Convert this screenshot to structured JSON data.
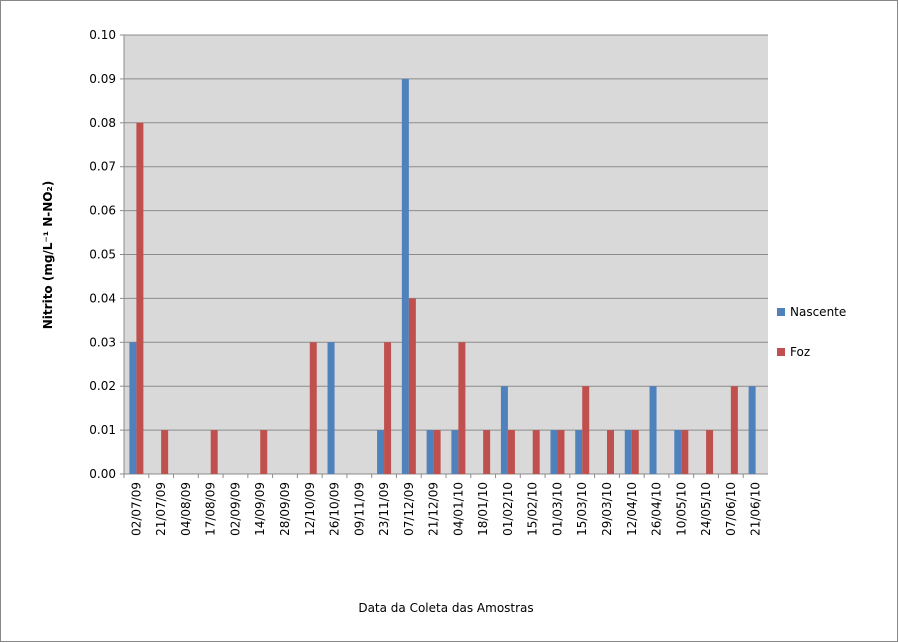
{
  "chart_data": {
    "type": "bar",
    "y_label": "Nitrito (mg/L⁻¹ N-NO₂)",
    "x_label": "Data da Coleta das Amostras",
    "categories": [
      "02/07/09",
      "21/07/09",
      "04/08/09",
      "17/08/09",
      "02/09/09",
      "14/09/09",
      "28/09/09",
      "12/10/09",
      "26/10/09",
      "09/11/09",
      "23/11/09",
      "07/12/09",
      "21/12/09",
      "04/01/10",
      "18/01/10",
      "01/02/10",
      "15/02/10",
      "01/03/10",
      "15/03/10",
      "29/03/10",
      "12/04/10",
      "26/04/10",
      "10/05/10",
      "24/05/10",
      "07/06/10",
      "21/06/10"
    ],
    "series": [
      {
        "name": "Nascente",
        "color": "#4f81bd",
        "values": [
          0.03,
          0,
          0,
          0,
          0,
          0,
          0,
          0,
          0.03,
          0,
          0.01,
          0.09,
          0.01,
          0.01,
          0,
          0.02,
          0,
          0.01,
          0.01,
          0,
          0.01,
          0.02,
          0.01,
          0,
          0,
          0.02
        ]
      },
      {
        "name": "Foz",
        "color": "#c0504d",
        "values": [
          0.08,
          0.01,
          0,
          0.01,
          0,
          0.01,
          0,
          0.03,
          0,
          0,
          0.03,
          0.04,
          0.01,
          0.03,
          0.01,
          0.01,
          0.01,
          0.01,
          0.02,
          0.01,
          0.01,
          0,
          0.01,
          0.01,
          0.02,
          0
        ]
      }
    ],
    "ylim": [
      0,
      0.1
    ],
    "yticks": [
      {
        "value": 0,
        "label": "0.00"
      },
      {
        "value": 0.01,
        "label": "0.01"
      },
      {
        "value": 0.02,
        "label": "0.02"
      },
      {
        "value": 0.03,
        "label": "0.03"
      },
      {
        "value": 0.04,
        "label": "0.04"
      },
      {
        "value": 0.05,
        "label": "0.05"
      },
      {
        "value": 0.06,
        "label": "0.06"
      },
      {
        "value": 0.07,
        "label": "0.07"
      },
      {
        "value": 0.08,
        "label": "0.08"
      },
      {
        "value": 0.09,
        "label": "0.09"
      },
      {
        "value": 0.1,
        "label": "0.10"
      }
    ],
    "grid": true,
    "legend": "right"
  }
}
